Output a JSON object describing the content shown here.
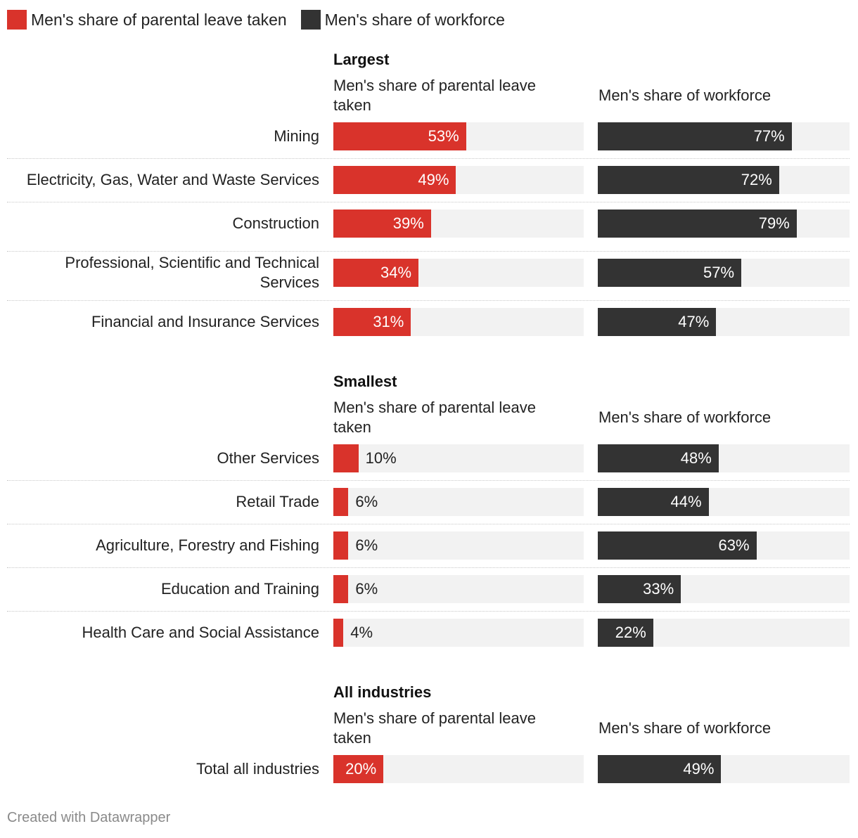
{
  "legend": [
    {
      "label": "Men's share of parental leave taken",
      "color": "#d9332b"
    },
    {
      "label": "Men's share of workforce",
      "color": "#333333"
    }
  ],
  "column_headers": {
    "leave": "Men's share of parental leave taken",
    "workforce": "Men's share of workforce"
  },
  "footer": "Created with Datawrapper",
  "chart_data": {
    "type": "bar",
    "title": "",
    "series": [
      {
        "name": "Men's share of parental leave taken",
        "color": "#d9332b",
        "unit": "%",
        "xlim": [
          0,
          100
        ]
      },
      {
        "name": "Men's share of workforce",
        "color": "#333333",
        "unit": "%",
        "xlim": [
          0,
          100
        ]
      }
    ],
    "groups": [
      {
        "title": "Largest",
        "rows": [
          {
            "label": "Mining",
            "leave": 53,
            "workforce": 77,
            "leave_label": "53%",
            "workforce_label": "77%"
          },
          {
            "label": "Electricity, Gas, Water and Waste Services",
            "leave": 49,
            "workforce": 72,
            "leave_label": "49%",
            "workforce_label": "72%"
          },
          {
            "label": "Construction",
            "leave": 39,
            "workforce": 79,
            "leave_label": "39%",
            "workforce_label": "79%"
          },
          {
            "label": "Professional, Scientific and Technical Services",
            "leave": 34,
            "workforce": 57,
            "leave_label": "34%",
            "workforce_label": "57%"
          },
          {
            "label": "Financial and Insurance Services",
            "leave": 31,
            "workforce": 47,
            "leave_label": "31%",
            "workforce_label": "47%"
          }
        ]
      },
      {
        "title": "Smallest",
        "rows": [
          {
            "label": "Other Services",
            "leave": 10,
            "workforce": 48,
            "leave_label": "10%",
            "workforce_label": "48%"
          },
          {
            "label": "Retail Trade",
            "leave": 6,
            "workforce": 44,
            "leave_label": "6%",
            "workforce_label": "44%"
          },
          {
            "label": "Agriculture, Forestry and Fishing",
            "leave": 6,
            "workforce": 63,
            "leave_label": "6%",
            "workforce_label": "63%"
          },
          {
            "label": "Education and Training",
            "leave": 6,
            "workforce": 33,
            "leave_label": "6%",
            "workforce_label": "33%"
          },
          {
            "label": "Health Care and Social Assistance",
            "leave": 4,
            "workforce": 22,
            "leave_label": "4%",
            "workforce_label": "22%"
          }
        ]
      },
      {
        "title": "All industries",
        "rows": [
          {
            "label": "Total all industries",
            "leave": 20,
            "workforce": 49,
            "leave_label": "20%",
            "workforce_label": "49%"
          }
        ]
      }
    ]
  }
}
